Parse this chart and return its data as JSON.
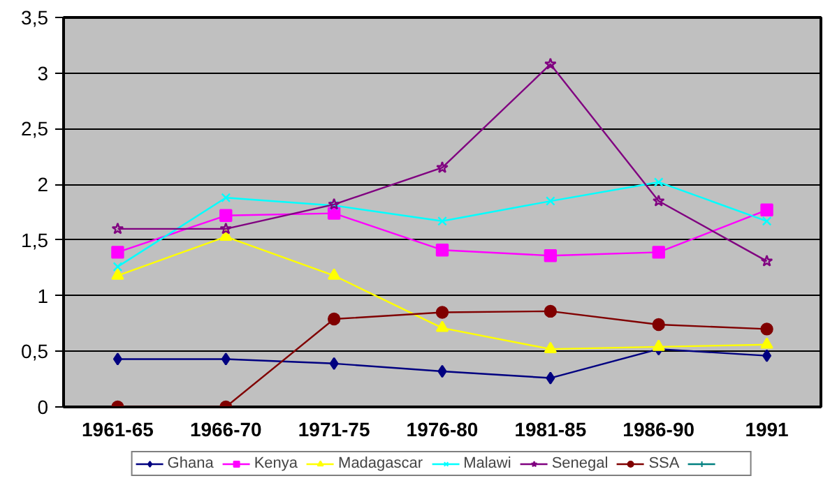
{
  "chart_data": {
    "type": "line",
    "categories": [
      "1961-65",
      "1966-70",
      "1971-75",
      "1976-80",
      "1981-85",
      "1986-90",
      "1991"
    ],
    "ylim": [
      0,
      3.5
    ],
    "yticks": [
      {
        "value": 0,
        "label": "0"
      },
      {
        "value": 0.5,
        "label": "0,5"
      },
      {
        "value": 1,
        "label": "1"
      },
      {
        "value": 1.5,
        "label": "1,5"
      },
      {
        "value": 2,
        "label": "2"
      },
      {
        "value": 2.5,
        "label": "2,5"
      },
      {
        "value": 3,
        "label": "3"
      },
      {
        "value": 3.5,
        "label": "3,5"
      }
    ],
    "grid": "y",
    "legend": "bottom",
    "series": [
      {
        "name": "Ghana",
        "color": "#000080",
        "marker": "diamond",
        "values": [
          0.43,
          0.43,
          0.39,
          0.32,
          0.26,
          0.52,
          0.46
        ]
      },
      {
        "name": "Kenya",
        "color": "#ff00ff",
        "marker": "square",
        "values": [
          1.39,
          1.72,
          1.74,
          1.41,
          1.36,
          1.39,
          1.77
        ]
      },
      {
        "name": "Madagascar",
        "color": "#ffff00",
        "marker": "triangle",
        "values": [
          1.18,
          1.53,
          1.18,
          0.71,
          0.52,
          0.54,
          0.56
        ]
      },
      {
        "name": "Malawi",
        "color": "#00ffff",
        "marker": "x",
        "values": [
          1.26,
          1.88,
          1.81,
          1.67,
          1.85,
          2.02,
          1.67
        ]
      },
      {
        "name": "Senegal",
        "color": "#800080",
        "marker": "star",
        "values": [
          1.6,
          1.6,
          1.82,
          2.15,
          3.08,
          1.85,
          1.31
        ]
      },
      {
        "name": "SSA",
        "color": "#800000",
        "marker": "circle",
        "values": [
          0,
          0,
          0.79,
          0.85,
          0.86,
          0.74,
          0.7
        ]
      },
      {
        "color": "#008080",
        "marker": "cross",
        "values": [
          null,
          null,
          null,
          null,
          null,
          null,
          null
        ]
      }
    ]
  }
}
